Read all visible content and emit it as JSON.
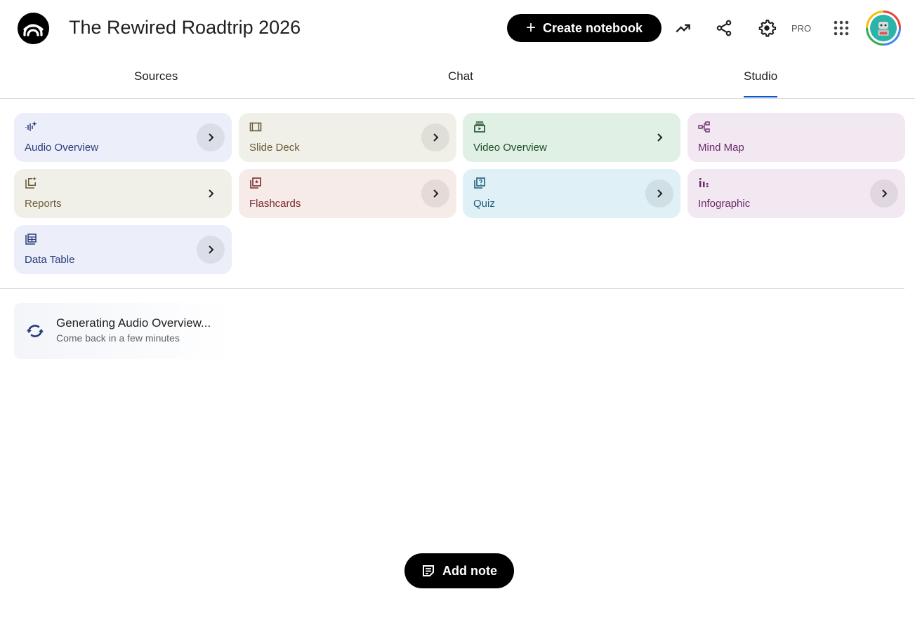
{
  "header": {
    "title": "The Rewired Roadtrip 2026",
    "create_label": "Create notebook",
    "pro_label": "PRO"
  },
  "tabs": [
    {
      "label": "Sources"
    },
    {
      "label": "Chat"
    },
    {
      "label": "Studio",
      "active": true
    }
  ],
  "studio_items": [
    {
      "label": "Audio Overview",
      "icon": "audio-waveform-icon",
      "bg": "#eceef9",
      "color": "#2a3d7a"
    },
    {
      "label": "Slide Deck",
      "icon": "slides-icon",
      "bg": "#f1f0e8",
      "color": "#6b5a3a"
    },
    {
      "label": "Video Overview",
      "icon": "video-icon",
      "bg": "#e1f0e4",
      "color": "#1e4d2b"
    },
    {
      "label": "Mind Map",
      "icon": "mind-map-icon",
      "bg": "#f1e8f1",
      "color": "#6b2a6b"
    },
    {
      "label": "Reports",
      "icon": "reports-icon",
      "bg": "#f1f0e8",
      "color": "#6b5a3a"
    },
    {
      "label": "Flashcards",
      "icon": "flashcards-icon",
      "bg": "#f6ebe9",
      "color": "#7a2a2a"
    },
    {
      "label": "Quiz",
      "icon": "quiz-icon",
      "bg": "#dff0f6",
      "color": "#1f5c7a"
    },
    {
      "label": "Infographic",
      "icon": "infographic-icon",
      "bg": "#f1e8f1",
      "color": "#6b2a6b"
    },
    {
      "label": "Data Table",
      "icon": "table-icon",
      "bg": "#eceef9",
      "color": "#2a3d7a"
    }
  ],
  "generating": {
    "title": "Generating Audio Overview...",
    "subtitle": "Come back in a few minutes"
  },
  "add_note_label": "Add note",
  "accent": "#0b57d0"
}
